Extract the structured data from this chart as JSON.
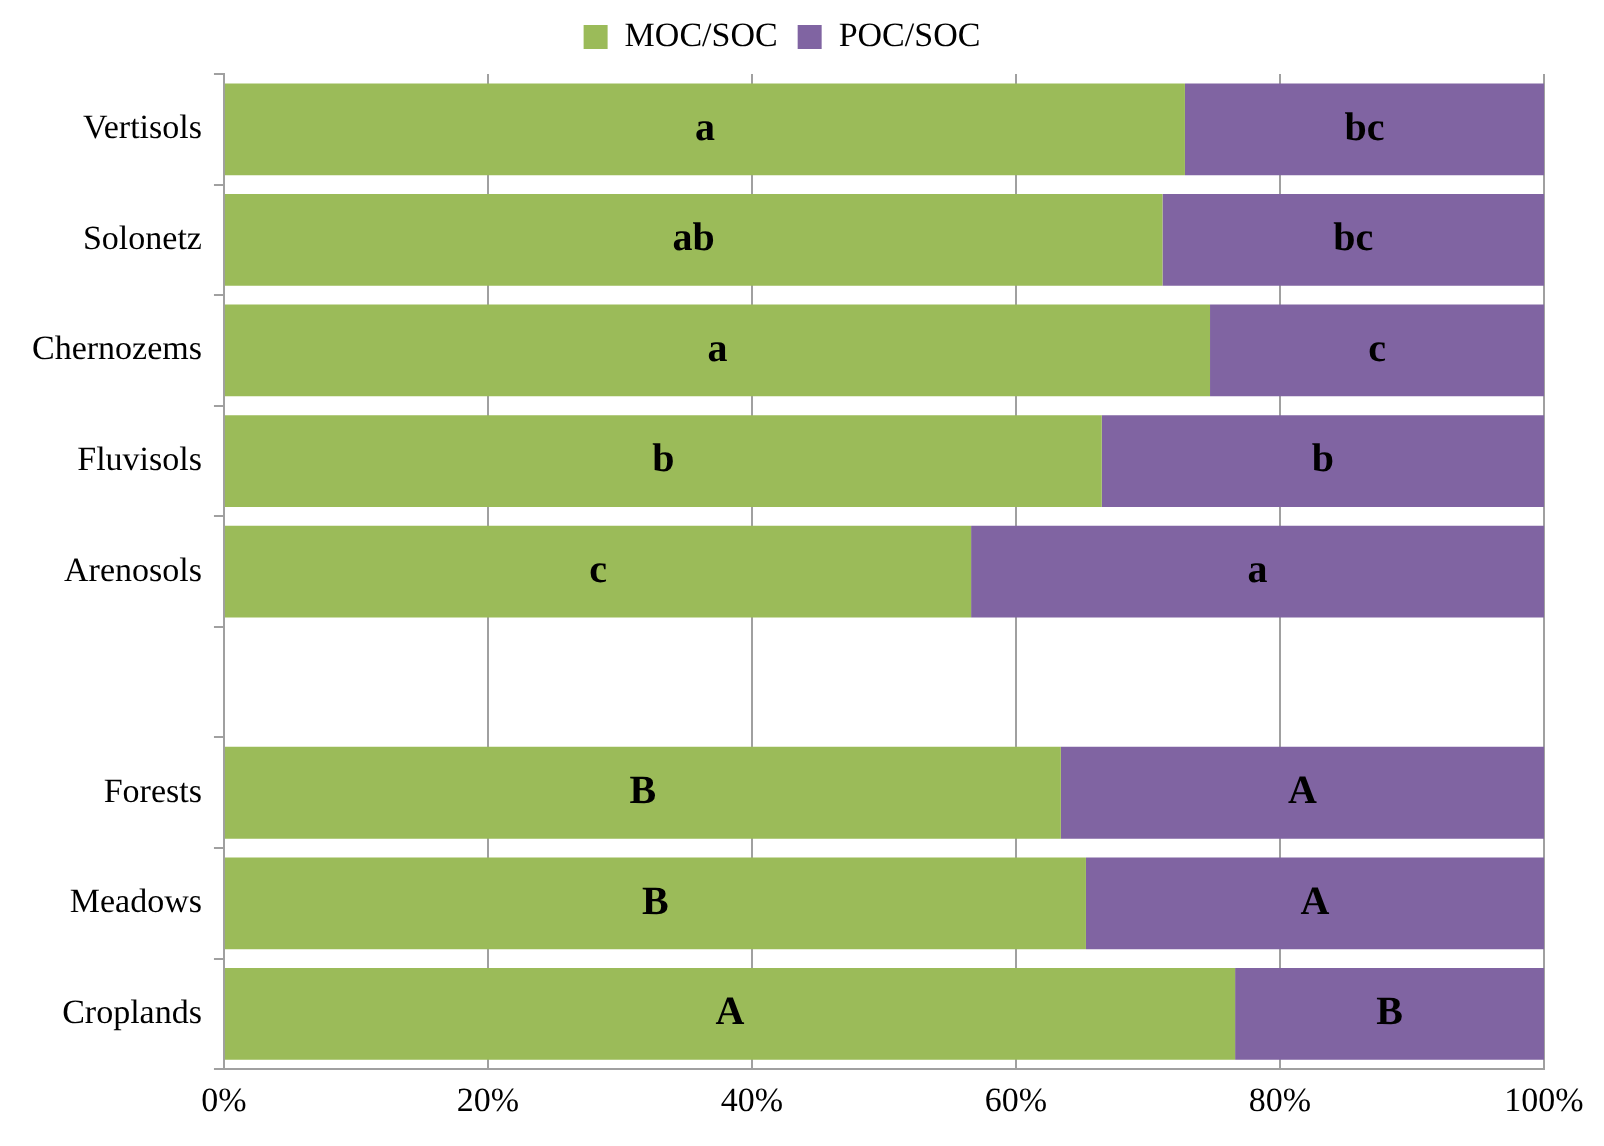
{
  "chart_data": {
    "type": "bar",
    "orientation": "horizontal",
    "stacked": true,
    "categories": [
      "Vertisols",
      "Solonetz",
      "Chernozems",
      "Fluvisols",
      "Arenosols",
      null,
      "Forests",
      "Meadows",
      "Croplands"
    ],
    "series": [
      {
        "name": "MOC/SOC",
        "color": "#9bbb59",
        "values": [
          72.8,
          71.1,
          74.7,
          66.5,
          56.6,
          null,
          63.4,
          65.3,
          76.6
        ],
        "value_labels": [
          "a",
          "ab",
          "a",
          "b",
          "c",
          null,
          "B",
          "B",
          "A"
        ]
      },
      {
        "name": "POC/SOC",
        "color": "#8064a2",
        "values": [
          27.2,
          28.9,
          25.3,
          33.5,
          43.4,
          null,
          36.6,
          34.7,
          23.4
        ],
        "value_labels": [
          "bc",
          "bc",
          "c",
          "b",
          "a",
          null,
          "A",
          "A",
          "B"
        ]
      }
    ],
    "xlim": [
      0,
      100
    ],
    "xticks": [
      {
        "value": 0,
        "label": "0%"
      },
      {
        "value": 20,
        "label": "20%"
      },
      {
        "value": 40,
        "label": "40%"
      },
      {
        "value": 60,
        "label": "60%"
      },
      {
        "value": 80,
        "label": "80%"
      },
      {
        "value": 100,
        "label": "100%"
      }
    ],
    "grid": "x",
    "legend": "top"
  }
}
